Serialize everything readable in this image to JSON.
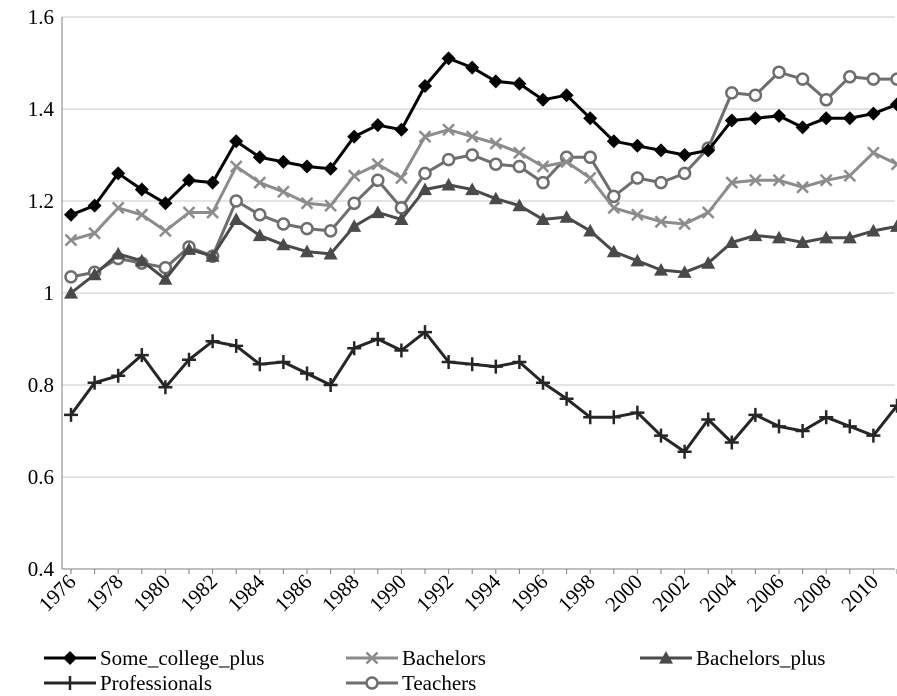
{
  "chart_data": {
    "type": "line",
    "title": "",
    "xlabel": "",
    "ylabel": "",
    "ylim": [
      0.4,
      1.6
    ],
    "yticks": [
      0.4,
      0.6,
      0.8,
      1,
      1.2,
      1.4,
      1.6
    ],
    "ytick_labels": [
      "0.4",
      "0.6",
      "0.8",
      "1",
      "1.2",
      "1.4",
      "1.6"
    ],
    "x": [
      1976,
      1977,
      1978,
      1979,
      1980,
      1981,
      1982,
      1983,
      1984,
      1985,
      1986,
      1987,
      1988,
      1989,
      1990,
      1991,
      1992,
      1993,
      1994,
      1995,
      1996,
      1997,
      1998,
      1999,
      2000,
      2001,
      2002,
      2003,
      2004,
      2005,
      2006,
      2007,
      2008,
      2009,
      2010,
      2011
    ],
    "xtick_labels": [
      "1976",
      "1978",
      "1980",
      "1982",
      "1984",
      "1986",
      "1988",
      "1990",
      "1992",
      "1994",
      "1996",
      "1998",
      "2000",
      "2002",
      "2004",
      "2006",
      "2008",
      "2010"
    ],
    "grid": "horizontal",
    "legend_position": "bottom",
    "series": [
      {
        "name": "Some_college_plus",
        "color": "#000000",
        "marker": "diamond",
        "values": [
          1.17,
          1.19,
          1.26,
          1.225,
          1.195,
          1.245,
          1.24,
          1.33,
          1.295,
          1.285,
          1.275,
          1.27,
          1.34,
          1.365,
          1.355,
          1.45,
          1.51,
          1.49,
          1.46,
          1.455,
          1.42,
          1.43,
          1.38,
          1.33,
          1.32,
          1.31,
          1.3,
          1.31,
          1.375,
          1.38,
          1.385,
          1.36,
          1.38,
          1.38,
          1.39,
          1.41
        ]
      },
      {
        "name": "Bachelors",
        "color": "#8c8c8c",
        "marker": "x",
        "values": [
          1.115,
          1.13,
          1.185,
          1.17,
          1.135,
          1.175,
          1.175,
          1.275,
          1.24,
          1.22,
          1.195,
          1.19,
          1.255,
          1.28,
          1.25,
          1.34,
          1.355,
          1.34,
          1.325,
          1.305,
          1.275,
          1.285,
          1.25,
          1.185,
          1.17,
          1.155,
          1.15,
          1.175,
          1.24,
          1.245,
          1.245,
          1.23,
          1.245,
          1.255,
          1.305,
          1.28
        ]
      },
      {
        "name": "Bachelors_plus",
        "color": "#4a4a4a",
        "marker": "triangle",
        "values": [
          1.0,
          1.04,
          1.085,
          1.07,
          1.03,
          1.095,
          1.08,
          1.16,
          1.125,
          1.105,
          1.09,
          1.085,
          1.145,
          1.175,
          1.16,
          1.225,
          1.235,
          1.225,
          1.205,
          1.19,
          1.16,
          1.165,
          1.135,
          1.09,
          1.07,
          1.05,
          1.045,
          1.065,
          1.11,
          1.125,
          1.12,
          1.11,
          1.12,
          1.12,
          1.135,
          1.145
        ]
      },
      {
        "name": "Professionals",
        "color": "#262626",
        "marker": "plus",
        "values": [
          0.735,
          0.805,
          0.82,
          0.865,
          0.795,
          0.855,
          0.895,
          0.885,
          0.845,
          0.85,
          0.825,
          0.8,
          0.88,
          0.9,
          0.875,
          0.915,
          0.85,
          0.845,
          0.84,
          0.85,
          0.805,
          0.77,
          0.73,
          0.73,
          0.74,
          0.69,
          0.655,
          0.725,
          0.675,
          0.735,
          0.71,
          0.7,
          0.73,
          0.71,
          0.69,
          0.755
        ]
      },
      {
        "name": "Teachers",
        "color": "#6e6e6e",
        "marker": "circle",
        "values": [
          1.035,
          1.045,
          1.075,
          1.065,
          1.055,
          1.1,
          1.08,
          1.2,
          1.17,
          1.15,
          1.14,
          1.135,
          1.195,
          1.245,
          1.185,
          1.26,
          1.29,
          1.3,
          1.28,
          1.275,
          1.24,
          1.295,
          1.295,
          1.21,
          1.25,
          1.24,
          1.26,
          1.315,
          1.435,
          1.43,
          1.48,
          1.465,
          1.42,
          1.47,
          1.465,
          1.465
        ]
      }
    ]
  }
}
